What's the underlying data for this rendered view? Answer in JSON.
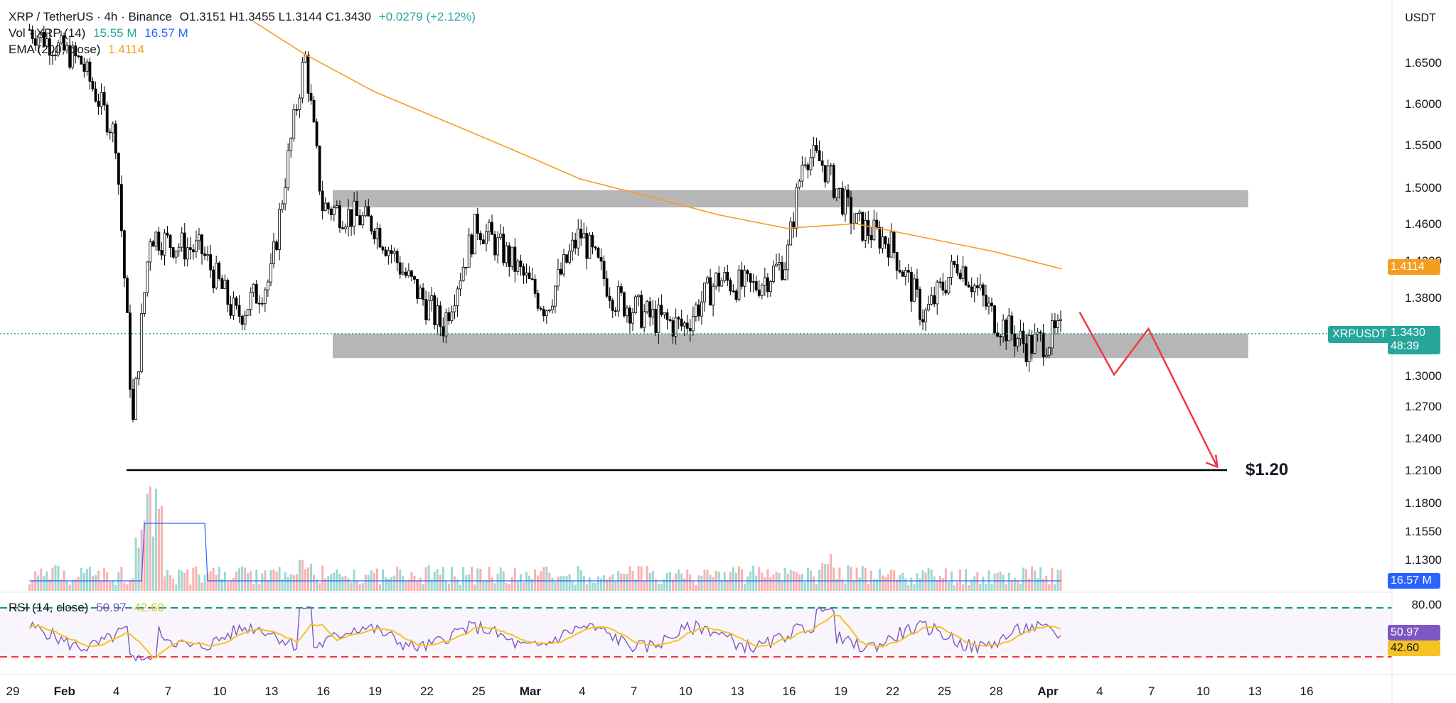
{
  "header": {
    "symbol": "XRP / TetherUS · 4h · Binance",
    "ohlc": "O1.3151  H1.3455  L1.3144  C1.3430",
    "change": "+0.0279 (+2.12%)",
    "vol_label": "Vol · XRP (14)",
    "vol_value1": "15.55 M",
    "vol_value2": "16.57 M",
    "ema_label": "EMA (200, close)",
    "ema_value": "1.4114"
  },
  "rsi_legend": {
    "label": "RSI (14, close)",
    "value": "50.97",
    "ma_value": "42.60"
  },
  "price_axis": {
    "currency": "USDT",
    "ticks": [
      "1.6500",
      "1.6000",
      "1.5500",
      "1.5000",
      "1.4600",
      "1.4200",
      "1.3800",
      "1.3000",
      "1.2700",
      "1.2400",
      "1.2100",
      "1.1800",
      "1.1550",
      "1.1300"
    ]
  },
  "rsi_axis": {
    "ticks": [
      "80.00"
    ]
  },
  "tags": {
    "ticker": "XRPUSDT",
    "price": "1.3430",
    "countdown": "48:39",
    "ema": "1.4114",
    "volume": "16.57 M",
    "rsi": "50.97",
    "rsi_ma": "42.60"
  },
  "annotation": {
    "target_label": "$1.20"
  },
  "colors": {
    "up": "#26a69a",
    "down": "#ef5350",
    "candle": "#000000",
    "ema": "#f59d1e",
    "zone": "#9e9e9e",
    "arrow": "#f23645",
    "vol_ma": "#2962ff",
    "rsi": "#7e57c2",
    "rsi_ma": "#f7c324",
    "rsi_upper": "#089981",
    "rsi_lower": "#f23645"
  },
  "chart_data": {
    "type": "line",
    "title": "XRP / TetherUS · 4h · Binance",
    "x_ticks": [
      "29",
      "Feb",
      "4",
      "7",
      "10",
      "13",
      "16",
      "19",
      "22",
      "25",
      "Mar",
      "4",
      "7",
      "10",
      "13",
      "16",
      "19",
      "22",
      "25",
      "28",
      "Apr",
      "4",
      "7",
      "10",
      "13",
      "16"
    ],
    "ylim": [
      1.11,
      1.7
    ],
    "log_scale": false,
    "grid": false,
    "series": [
      {
        "name": "XRPUSDT",
        "x": [
          "Jan 30",
          "Feb 2",
          "Feb 4",
          "Feb 5",
          "Feb 6",
          "Feb 7",
          "Feb 9",
          "Feb 11",
          "Feb 13",
          "Feb 15",
          "Feb 16",
          "Feb 19",
          "Feb 21",
          "Feb 23",
          "Feb 25",
          "Feb 27",
          "Mar 1",
          "Mar 3",
          "Mar 5",
          "Mar 7",
          "Mar 9",
          "Mar 11",
          "Mar 13",
          "Mar 15",
          "Mar 16",
          "Mar 17",
          "Mar 19",
          "Mar 21",
          "Mar 23",
          "Mar 25",
          "Mar 27",
          "Mar 29",
          "Mar 31"
        ],
        "values": [
          1.69,
          1.65,
          1.56,
          1.25,
          1.45,
          1.44,
          1.43,
          1.36,
          1.4,
          1.66,
          1.48,
          1.46,
          1.4,
          1.35,
          1.46,
          1.42,
          1.37,
          1.45,
          1.38,
          1.36,
          1.35,
          1.4,
          1.39,
          1.42,
          1.54,
          1.53,
          1.46,
          1.44,
          1.36,
          1.42,
          1.36,
          1.33,
          1.343
        ]
      },
      {
        "name": "EMA (200, close)",
        "x": [
          "Feb 12",
          "Feb 15",
          "Feb 19",
          "Feb 23",
          "Feb 27",
          "Mar 3",
          "Mar 7",
          "Mar 11",
          "Mar 15",
          "Mar 19",
          "Mar 23",
          "Mar 27",
          "Mar 31"
        ],
        "values": [
          1.7,
          1.66,
          1.615,
          1.58,
          1.545,
          1.51,
          1.49,
          1.47,
          1.455,
          1.46,
          1.445,
          1.43,
          1.411
        ]
      }
    ],
    "zones": [
      {
        "label": "resistance",
        "range": [
          1.478,
          1.497
        ],
        "x": [
          "Feb 16",
          "Apr 10"
        ]
      },
      {
        "label": "support",
        "range": [
          1.318,
          1.343
        ],
        "x": [
          "Feb 16",
          "Apr 10"
        ]
      }
    ],
    "target": {
      "label": "$1.20",
      "value": 1.21
    },
    "projection": {
      "x": [
        "Mar 31",
        "Apr 2",
        "Apr 4",
        "Apr 8"
      ],
      "values": [
        1.365,
        1.301,
        1.348,
        1.213
      ]
    },
    "rsi": {
      "upper": 80,
      "lower": 30,
      "value": 50.97,
      "ma": 42.6
    }
  }
}
